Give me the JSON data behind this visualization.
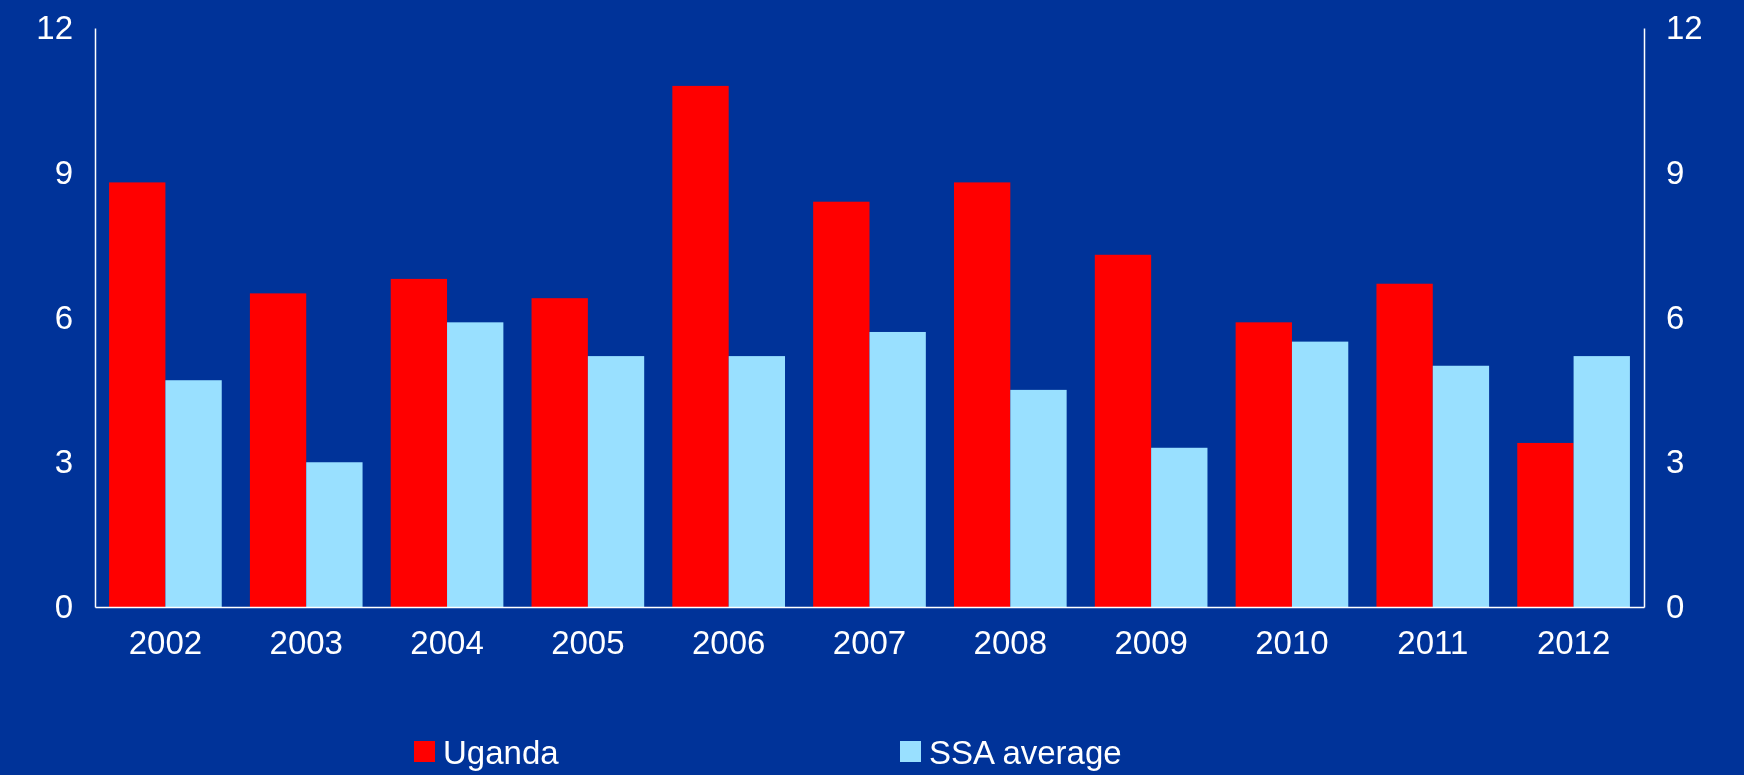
{
  "chart_data": {
    "type": "bar",
    "categories": [
      "2002",
      "2003",
      "2004",
      "2005",
      "2006",
      "2007",
      "2008",
      "2009",
      "2010",
      "2011",
      "2012"
    ],
    "series": [
      {
        "name": "Uganda",
        "color": "#ff0000",
        "values": [
          8.8,
          6.5,
          6.8,
          6.4,
          10.8,
          8.4,
          8.8,
          7.3,
          5.9,
          6.7,
          3.4
        ]
      },
      {
        "name": "SSA average",
        "color": "#99e0ff",
        "values": [
          4.7,
          3.0,
          5.9,
          5.2,
          5.2,
          5.7,
          4.5,
          3.3,
          5.5,
          5.0,
          5.2
        ]
      }
    ],
    "ylim": [
      0,
      12
    ],
    "yticks": [
      0,
      3,
      6,
      9,
      12
    ],
    "y2lim": [
      0,
      12
    ],
    "y2ticks": [
      0,
      3,
      6,
      9,
      12
    ],
    "grid": false,
    "legend": "bottom"
  }
}
